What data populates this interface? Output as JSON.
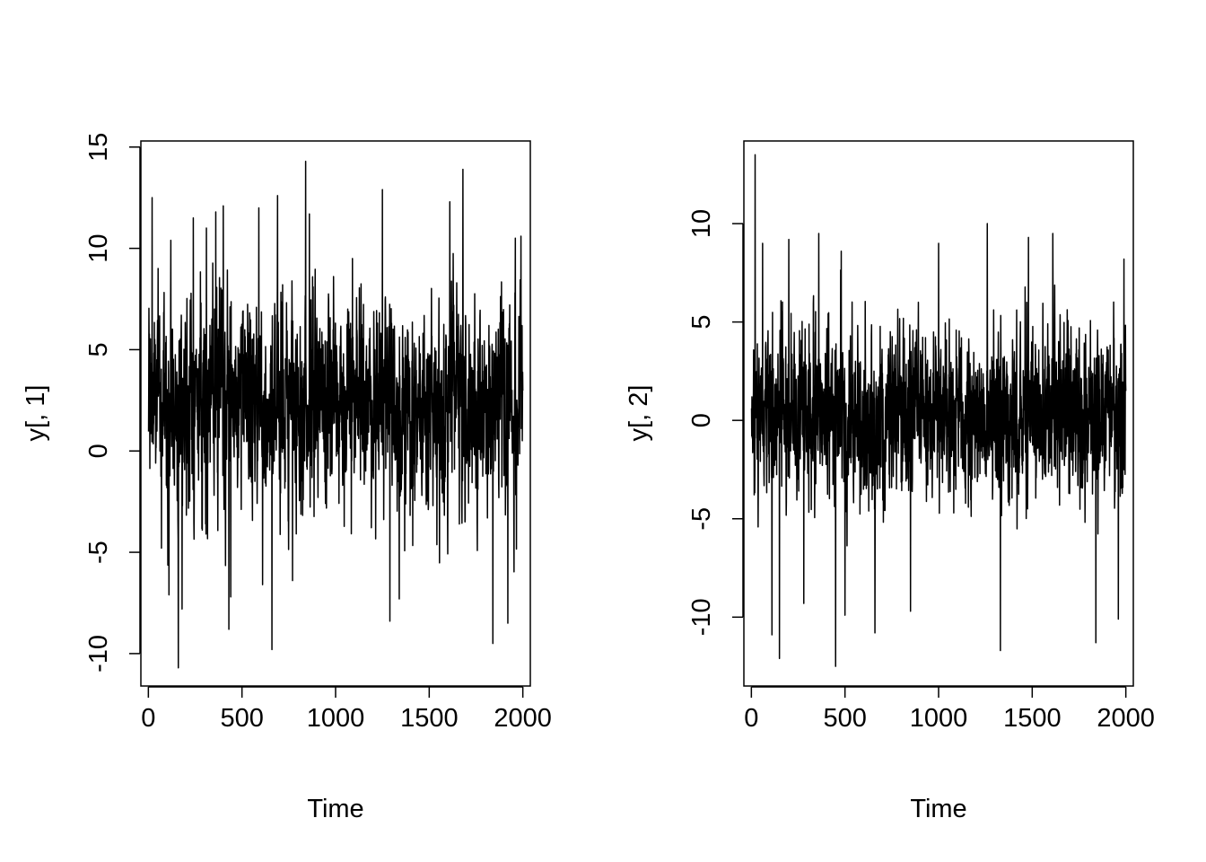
{
  "chart_data": [
    {
      "type": "line",
      "xlabel": "Time",
      "ylabel": "y[, 1]",
      "xlim": [
        -40,
        2040
      ],
      "ylim": [
        -11.6,
        15.3
      ],
      "x_ticks": [
        0,
        500,
        1000,
        1500,
        2000
      ],
      "x_tick_labels": [
        "0",
        "500",
        "1000",
        "1500",
        "2000"
      ],
      "y_ticks": [
        -10,
        -5,
        0,
        5,
        10,
        15
      ],
      "y_tick_labels": [
        "-10",
        "-5",
        "0",
        "5",
        "10",
        "15"
      ],
      "grid": false,
      "series": [
        {
          "n_points": 2000,
          "x_start": 1,
          "x_end": 2000,
          "mean": 2.5,
          "typical_band": [
            -3,
            8
          ],
          "max": 14.3,
          "min": -10.7,
          "spikes": [
            [
              20,
              12.5
            ],
            [
              70,
              -4.8
            ],
            [
              110,
              -7.1
            ],
            [
              120,
              10.4
            ],
            [
              160,
              -10.7
            ],
            [
              180,
              -7.8
            ],
            [
              240,
              11.5
            ],
            [
              310,
              11.0
            ],
            [
              360,
              11.8
            ],
            [
              400,
              12.1
            ],
            [
              430,
              -8.8
            ],
            [
              440,
              -7.2
            ],
            [
              590,
              12.0
            ],
            [
              610,
              -6.6
            ],
            [
              660,
              -9.8
            ],
            [
              690,
              12.6
            ],
            [
              770,
              -6.4
            ],
            [
              840,
              14.3
            ],
            [
              860,
              11.7
            ],
            [
              1090,
              9.5
            ],
            [
              1250,
              12.9
            ],
            [
              1290,
              -8.4
            ],
            [
              1340,
              -7.3
            ],
            [
              1610,
              12.3
            ],
            [
              1680,
              13.9
            ],
            [
              1840,
              -9.5
            ],
            [
              1920,
              -8.5
            ],
            [
              1960,
              10.5
            ],
            [
              1990,
              10.6
            ]
          ]
        }
      ]
    },
    {
      "type": "line",
      "xlabel": "Time",
      "ylabel": "y[, 2]",
      "xlim": [
        -40,
        2040
      ],
      "ylim": [
        -13.5,
        14.2
      ],
      "x_ticks": [
        0,
        500,
        1000,
        1500,
        2000
      ],
      "x_tick_labels": [
        "0",
        "500",
        "1000",
        "1500",
        "2000"
      ],
      "y_ticks": [
        -10,
        -5,
        0,
        5,
        10
      ],
      "y_tick_labels": [
        "-10",
        "-5",
        "0",
        "5",
        "10"
      ],
      "grid": false,
      "series": [
        {
          "n_points": 2000,
          "x_start": 1,
          "x_end": 2000,
          "mean": 0.3,
          "typical_band": [
            -4.5,
            5
          ],
          "max": 13.5,
          "min": -12.5,
          "spikes": [
            [
              20,
              13.5
            ],
            [
              60,
              9.0
            ],
            [
              110,
              -10.9
            ],
            [
              150,
              -12.1
            ],
            [
              200,
              9.2
            ],
            [
              280,
              -9.3
            ],
            [
              360,
              9.5
            ],
            [
              450,
              -12.5
            ],
            [
              480,
              8.6
            ],
            [
              500,
              -9.9
            ],
            [
              660,
              -10.8
            ],
            [
              850,
              -9.7
            ],
            [
              1000,
              9.0
            ],
            [
              1260,
              10.0
            ],
            [
              1330,
              -11.7
            ],
            [
              1480,
              9.3
            ],
            [
              1610,
              9.5
            ],
            [
              1840,
              -11.3
            ],
            [
              1960,
              -10.1
            ],
            [
              1990,
              8.2
            ]
          ]
        }
      ]
    }
  ]
}
